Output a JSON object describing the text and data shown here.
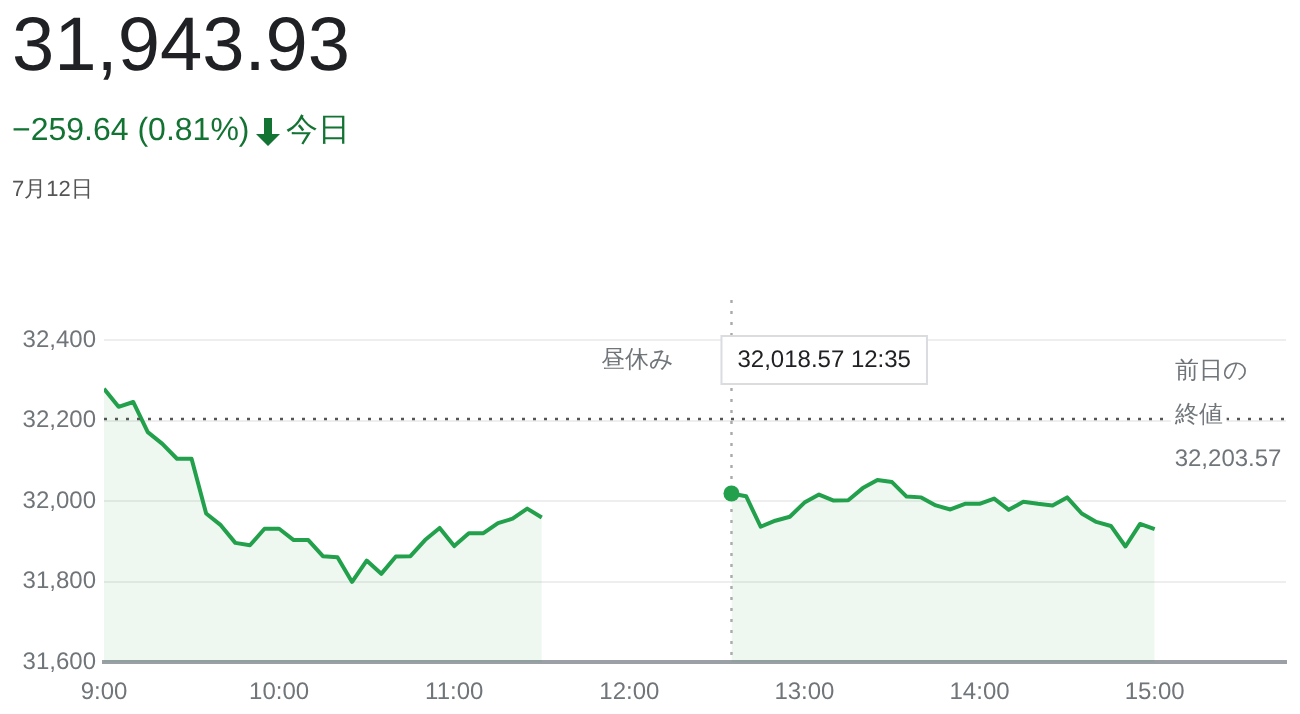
{
  "chart_data": {
    "type": "area",
    "title": "31,943.93",
    "subtitle": "−259.64 (0.81%)",
    "annotations": [
      "今日",
      "7月12日",
      "昼休み",
      "32,018.57 12:35"
    ],
    "x": [
      9,
      9.0833,
      9.1667,
      9.25,
      9.3333,
      9.4167,
      9.5,
      9.5833,
      9.6667,
      9.75,
      9.8333,
      9.9167,
      10,
      10.0833,
      10.1667,
      10.25,
      10.3333,
      10.4167,
      10.5,
      10.5833,
      10.6667,
      10.75,
      10.8333,
      10.9167,
      11,
      11.0833,
      11.1667,
      11.25,
      11.3333,
      11.4167,
      11.5,
      12,
      12.5833,
      12.6667,
      12.75,
      12.8333,
      12.9167,
      13,
      13.0833,
      13.1667,
      13.25,
      13.3333,
      13.4167,
      13.5,
      13.5833,
      13.6667,
      13.75,
      13.8333,
      13.9167,
      14,
      14.0833,
      14.1667,
      14.25,
      14.3333,
      14.4167,
      14.5,
      14.5833,
      14.6667,
      14.75,
      14.8333,
      14.9167,
      15
    ],
    "series": [
      {
        "color": "#22a04b",
        "values": [
          32279,
          32234,
          32246,
          32171,
          32142,
          32105,
          32105,
          31969,
          31940,
          31896,
          31890,
          31931,
          31931,
          31903,
          31903,
          31863,
          31860,
          31799,
          31852,
          31819,
          31862,
          31863,
          31903,
          31933,
          31888,
          31920,
          31920,
          31945,
          31956,
          31981,
          31959,
          null,
          32018.57,
          32012,
          31936,
          31951,
          31961,
          31996,
          32016,
          32001,
          32002,
          32032,
          32052,
          32047,
          32011,
          32009,
          31989,
          31979,
          31993,
          31993,
          32006,
          31978,
          31998,
          31993,
          31989,
          32009,
          31969,
          31948,
          31938,
          31887,
          31943,
          31930
        ]
      }
    ],
    "xlim": [
      9,
      15.75
    ],
    "xticks": [
      {
        "value": 9,
        "label": "9:00"
      },
      {
        "value": 10,
        "label": "10:00"
      },
      {
        "value": 11,
        "label": "11:00"
      },
      {
        "value": 12,
        "label": "12:00"
      },
      {
        "value": 13,
        "label": "13:00"
      },
      {
        "value": 14,
        "label": "14:00"
      },
      {
        "value": 15,
        "label": "15:00"
      }
    ],
    "ylim": [
      31600,
      32400
    ],
    "yticks": [
      {
        "value": 31600,
        "label": "31,600"
      },
      {
        "value": 31800,
        "label": "31,800"
      },
      {
        "value": 32000,
        "label": "32,000"
      },
      {
        "value": 32200,
        "label": "32,200"
      },
      {
        "value": 32400,
        "label": "32,400"
      }
    ],
    "ref_lines": [
      {
        "axis": "y",
        "value": 32203.57,
        "label": "前日の終値 32,203.57",
        "line_style": "dotted",
        "color": "#555555"
      },
      {
        "axis": "x",
        "value": 12.5833,
        "line_style": "dotted",
        "color": "#aaaaaa"
      }
    ],
    "grid": "y",
    "legend": false,
    "marker": "none",
    "line_style": "solid"
  }
}
